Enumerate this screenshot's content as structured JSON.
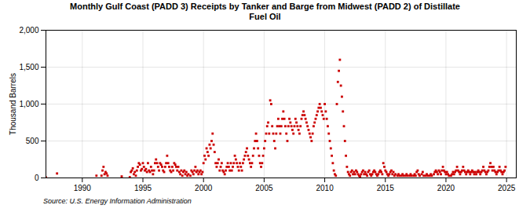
{
  "chart_data": {
    "type": "scatter",
    "title": "Monthly Gulf Coast (PADD 3) Receipts by Tanker and Barge from Midwest (PADD 2) of Distillate\nFuel Oil",
    "ylabel": "Thousand Barrels",
    "source": "Source: U.S. Energy Information Administration",
    "color": "#CC0000",
    "marker": "square",
    "grid": true,
    "xlim": [
      1987.0,
      2025.8
    ],
    "ylim": [
      0,
      2000
    ],
    "xticks": [
      1990,
      1995,
      2000,
      2005,
      2010,
      2015,
      2020,
      2025
    ],
    "yticks": [
      0,
      500,
      {
        "value": 1000,
        "label": "1,000"
      },
      {
        "value": 1500,
        "label": "1,500"
      },
      {
        "value": 2000,
        "label": "2,000"
      }
    ],
    "x": [
      1987,
      1987.9166666666667,
      1991.1666666666667,
      1991.5833333333333,
      1991.6666666666667,
      1991.75,
      1991.8333333333333,
      1991.9166666666667,
      1992,
      1992.0833333333333,
      1993.25,
      1993.9166666666667,
      1994,
      1994.0833333333333,
      1994.1666666666667,
      1994.25,
      1994.3333333333333,
      1994.4166666666667,
      1994.5,
      1994.5833333333333,
      1994.6666666666667,
      1994.75,
      1994.8333333333333,
      1994.9166666666667,
      1995,
      1995.0833333333333,
      1995.1666666666667,
      1995.25,
      1995.3333333333333,
      1995.4166666666667,
      1995.5,
      1995.5833333333333,
      1995.6666666666667,
      1995.75,
      1995.8333333333333,
      1995.9166666666667,
      1996,
      1996.0833333333333,
      1996.1666666666667,
      1996.25,
      1996.3333333333333,
      1996.4166666666667,
      1996.5,
      1996.5833333333333,
      1996.6666666666667,
      1996.75,
      1996.8333333333333,
      1996.9166666666667,
      1997,
      1997.0833333333333,
      1997.1666666666667,
      1997.25,
      1997.3333333333333,
      1997.4166666666667,
      1997.5,
      1997.5833333333333,
      1997.6666666666667,
      1997.75,
      1997.8333333333333,
      1997.9166666666667,
      1998,
      1998.0833333333333,
      1998.1666666666667,
      1998.25,
      1998.3333333333333,
      1998.4166666666667,
      1998.5,
      1998.5833333333333,
      1998.6666666666667,
      1998.75,
      1998.9166666666667,
      1999,
      1999.0833333333333,
      1999.1666666666667,
      1999.25,
      1999.3333333333333,
      1999.4166666666667,
      1999.5,
      1999.5833333333333,
      1999.6666666666667,
      1999.75,
      1999.8333333333333,
      1999.9166666666667,
      2000,
      2000.0833333333333,
      2000.1666666666667,
      2000.25,
      2000.3333333333333,
      2000.4166666666667,
      2000.5,
      2000.5833333333333,
      2000.6666666666667,
      2000.75,
      2000.8333333333333,
      2000.9166666666667,
      2001,
      2001.0833333333333,
      2001.1666666666667,
      2001.25,
      2001.3333333333333,
      2001.4166666666667,
      2001.5,
      2001.5833333333333,
      2001.6666666666667,
      2001.75,
      2001.8333333333333,
      2001.9166666666667,
      2002,
      2002.0833333333333,
      2002.1666666666667,
      2002.25,
      2002.3333333333333,
      2002.4166666666667,
      2002.5,
      2002.5833333333333,
      2002.6666666666667,
      2002.75,
      2002.8333333333333,
      2002.9166666666667,
      2003,
      2003.0833333333333,
      2003.1666666666667,
      2003.25,
      2003.3333333333333,
      2003.4166666666667,
      2003.5,
      2003.5833333333333,
      2003.6666666666667,
      2003.75,
      2003.8333333333333,
      2003.9166666666667,
      2004,
      2004.0833333333333,
      2004.1666666666667,
      2004.25,
      2004.3333333333333,
      2004.4166666666667,
      2004.5,
      2004.5833333333333,
      2004.6666666666667,
      2004.75,
      2004.8333333333333,
      2004.9166666666667,
      2005,
      2005.0833333333333,
      2005.1666666666667,
      2005.25,
      2005.3333333333333,
      2005.4166666666667,
      2005.5,
      2005.5833333333333,
      2005.6666666666667,
      2005.75,
      2005.8333333333333,
      2005.9166666666667,
      2006,
      2006.0833333333333,
      2006.1666666666667,
      2006.25,
      2006.3333333333333,
      2006.4166666666667,
      2006.5,
      2006.5833333333333,
      2006.6666666666667,
      2006.75,
      2006.8333333333333,
      2006.9166666666667,
      2007,
      2007.0833333333333,
      2007.1666666666667,
      2007.25,
      2007.3333333333333,
      2007.4166666666667,
      2007.5,
      2007.5833333333333,
      2007.6666666666667,
      2007.75,
      2007.8333333333333,
      2007.9166666666667,
      2008,
      2008.0833333333333,
      2008.1666666666667,
      2008.25,
      2008.3333333333333,
      2008.4166666666667,
      2008.5,
      2008.5833333333333,
      2008.6666666666667,
      2008.75,
      2008.8333333333333,
      2008.9166666666667,
      2009,
      2009.0833333333333,
      2009.1666666666667,
      2009.25,
      2009.3333333333333,
      2009.4166666666667,
      2009.5,
      2009.5833333333333,
      2009.6666666666667,
      2009.75,
      2009.8333333333333,
      2009.9166666666667,
      2010,
      2010.0833333333333,
      2010.1666666666667,
      2010.25,
      2010.3333333333333,
      2010.4166666666667,
      2010.5,
      2010.5833333333333,
      2010.6666666666667,
      2010.75,
      2010.8333333333333,
      2010.9166666666667,
      2011,
      2011.0833333333333,
      2011.1666666666667,
      2011.25,
      2011.3333333333333,
      2011.4166666666667,
      2011.5,
      2011.5833333333333,
      2011.6666666666667,
      2011.75,
      2011.8333333333333,
      2011.9166666666667,
      2012,
      2012.0833333333333,
      2012.1666666666667,
      2012.25,
      2012.3333333333333,
      2012.4166666666667,
      2012.5,
      2012.5833333333333,
      2012.6666666666667,
      2012.75,
      2012.8333333333333,
      2012.9166666666667,
      2013,
      2013.0833333333333,
      2013.1666666666667,
      2013.25,
      2013.3333333333333,
      2013.4166666666667,
      2013.5,
      2013.5833333333333,
      2013.6666666666667,
      2013.75,
      2013.8333333333333,
      2013.9166666666667,
      2014,
      2014.0833333333333,
      2014.1666666666667,
      2014.25,
      2014.3333333333333,
      2014.4166666666667,
      2014.5,
      2014.5833333333333,
      2014.6666666666667,
      2014.75,
      2014.8333333333333,
      2014.9166666666667,
      2015,
      2015.0833333333333,
      2015.1666666666667,
      2015.25,
      2015.3333333333333,
      2015.4166666666667,
      2015.5,
      2015.5833333333333,
      2015.6666666666667,
      2015.75,
      2015.8333333333333,
      2016,
      2016.0833333333333,
      2016.1666666666667,
      2016.3333333333333,
      2016.4166666666667,
      2016.5,
      2016.6666666666667,
      2016.75,
      2016.8333333333333,
      2017,
      2017.0833333333333,
      2017.1666666666667,
      2017.3333333333333,
      2017.4166666666667,
      2017.5,
      2017.5833333333333,
      2017.6666666666667,
      2017.75,
      2017.8333333333333,
      2018,
      2018.0833333333333,
      2018.1666666666667,
      2018.3333333333333,
      2018.4166666666667,
      2018.5,
      2018.6666666666667,
      2018.75,
      2018.8333333333333,
      2019,
      2019.0833333333333,
      2019.1666666666667,
      2019.25,
      2019.3333333333333,
      2019.4166666666667,
      2019.5,
      2019.5833333333333,
      2019.6666666666667,
      2019.75,
      2019.8333333333333,
      2019.9166666666667,
      2020,
      2020.0833333333333,
      2020.1666666666667,
      2020.25,
      2020.4166666666667,
      2020.5,
      2020.5833333333333,
      2020.6666666666667,
      2020.75,
      2020.8333333333333,
      2020.9166666666667,
      2021,
      2021.0833333333333,
      2021.1666666666667,
      2021.25,
      2021.3333333333333,
      2021.4166666666667,
      2021.5,
      2021.5833333333333,
      2021.6666666666667,
      2021.75,
      2021.8333333333333,
      2021.9166666666667,
      2022,
      2022.0833333333333,
      2022.1666666666667,
      2022.25,
      2022.3333333333333,
      2022.4166666666667,
      2022.5,
      2022.5833333333333,
      2022.6666666666667,
      2022.75,
      2022.8333333333333,
      2022.9166666666667,
      2023,
      2023.0833333333333,
      2023.1666666666667,
      2023.25,
      2023.3333333333333,
      2023.4166666666667,
      2023.5,
      2023.5833333333333,
      2023.6666666666667,
      2023.75,
      2023.8333333333333,
      2023.9166666666667,
      2024,
      2024.0833333333333,
      2024.1666666666667,
      2024.25,
      2024.3333333333333,
      2024.4166666666667,
      2024.5,
      2024.5833333333333,
      2024.6666666666667,
      2024.75,
      2024.8333333333333,
      2024.9166666666667
    ],
    "values": [
      5,
      60,
      30,
      30,
      100,
      150,
      50,
      80,
      60,
      30,
      20,
      10,
      80,
      100,
      130,
      50,
      80,
      30,
      100,
      150,
      200,
      180,
      100,
      120,
      200,
      150,
      100,
      120,
      80,
      200,
      100,
      80,
      150,
      100,
      50,
      100,
      200,
      250,
      200,
      150,
      100,
      200,
      180,
      150,
      100,
      80,
      150,
      200,
      300,
      200,
      150,
      100,
      80,
      150,
      100,
      200,
      180,
      150,
      100,
      150,
      80,
      50,
      100,
      30,
      80,
      100,
      50,
      80,
      30,
      50,
      30,
      100,
      80,
      50,
      100,
      150,
      80,
      100,
      50,
      80,
      100,
      50,
      80,
      200,
      300,
      250,
      400,
      350,
      300,
      450,
      400,
      500,
      600,
      450,
      350,
      200,
      150,
      200,
      250,
      100,
      150,
      200,
      100,
      80,
      50,
      100,
      150,
      200,
      150,
      100,
      200,
      100,
      150,
      200,
      300,
      250,
      200,
      150,
      100,
      200,
      150,
      100,
      200,
      250,
      300,
      350,
      400,
      300,
      250,
      200,
      150,
      200,
      300,
      400,
      500,
      600,
      500,
      400,
      300,
      200,
      150,
      200,
      300,
      400,
      500,
      600,
      700,
      750,
      600,
      1050,
      1000,
      700,
      600,
      500,
      400,
      600,
      700,
      800,
      700,
      600,
      700,
      800,
      900,
      800,
      700,
      600,
      500,
      700,
      800,
      750,
      700,
      650,
      600,
      700,
      800,
      750,
      700,
      650,
      600,
      700,
      800,
      850,
      900,
      850,
      800,
      750,
      700,
      650,
      600,
      550,
      500,
      600,
      700,
      750,
      800,
      850,
      900,
      950,
      1000,
      950,
      900,
      850,
      800,
      1000,
      900,
      800,
      700,
      600,
      500,
      400,
      300,
      200,
      100,
      50,
      30,
      1000,
      1300,
      1450,
      1600,
      1250,
      1100,
      900,
      700,
      500,
      300,
      150,
      80,
      50,
      30,
      80,
      100,
      50,
      80,
      50,
      100,
      80,
      50,
      30,
      20,
      50,
      80,
      100,
      50,
      80,
      50,
      30,
      80,
      100,
      50,
      30,
      50,
      80,
      100,
      80,
      50,
      30,
      50,
      80,
      100,
      80,
      50,
      200,
      150,
      100,
      80,
      50,
      30,
      50,
      80,
      100,
      50,
      80,
      30,
      50,
      30,
      50,
      30,
      30,
      50,
      30,
      30,
      50,
      30,
      30,
      50,
      30,
      30,
      50,
      30,
      80,
      100,
      50,
      30,
      50,
      80,
      30,
      30,
      50,
      30,
      30,
      50,
      30,
      50,
      80,
      100,
      80,
      50,
      100,
      80,
      50,
      100,
      150,
      100,
      80,
      50,
      80,
      50,
      30,
      30,
      50,
      80,
      50,
      80,
      100,
      150,
      100,
      80,
      50,
      80,
      100,
      150,
      100,
      80,
      50,
      80,
      100,
      80,
      50,
      80,
      100,
      80,
      50,
      80,
      50,
      80,
      100,
      80,
      50,
      80,
      100,
      150,
      100,
      80,
      50,
      80,
      100,
      150,
      200,
      150,
      100,
      150,
      100,
      80,
      50,
      80,
      100,
      150,
      100,
      80,
      50,
      80,
      100,
      150
    ]
  }
}
